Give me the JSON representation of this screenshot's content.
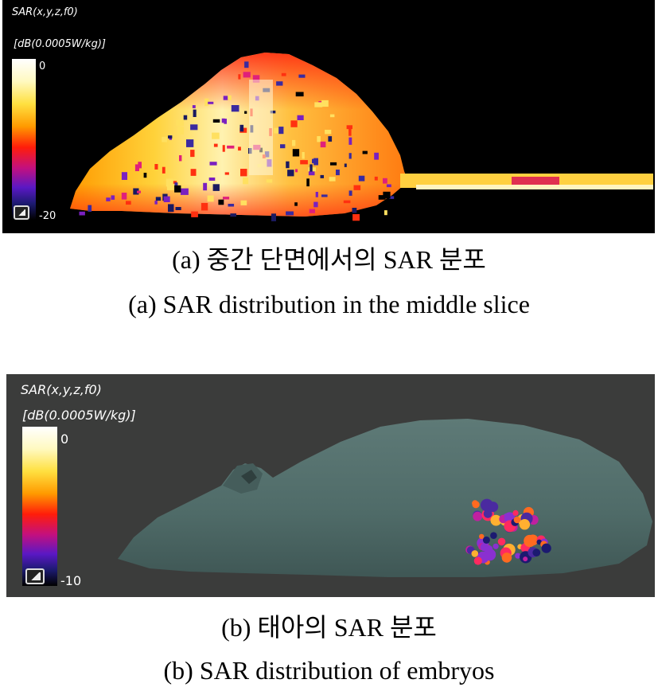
{
  "panel_a": {
    "title": "SAR(x,y,z,f0)",
    "unit": "[dB(0.0005W/kg)]",
    "colorbar_max": "0",
    "colorbar_min": "-20",
    "caption_korean": "(a) 중간 단면에서의 SAR 분포",
    "caption_english": "(a) SAR distribution in the middle slice"
  },
  "panel_b": {
    "title": "SAR(x,y,z,f0)",
    "unit": "[dB(0.0005W/kg)]",
    "colorbar_max": "0",
    "colorbar_min": "-10",
    "caption_korean": "(b) 태아의 SAR 분포",
    "caption_english": "(b) SAR distribution of embryos"
  },
  "colors": {
    "panel_a_background": "#000000",
    "panel_b_background": "#3b3c3b",
    "mouse_body": "#4f6b68"
  }
}
